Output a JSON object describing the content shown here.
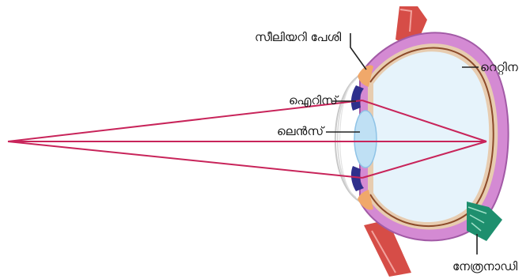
{
  "diagram": {
    "labels": {
      "ciliary_muscle": "സീലിയറി പേശി",
      "iris": "ഐറിസ്",
      "lens": "ലെൻസ്",
      "retina": "റെറ്റിന",
      "optic_nerve": "നേത്രനാഡി"
    },
    "colors": {
      "sclera": "#d48ad3",
      "sclera_edge": "#a25aa6",
      "choroid": "#e7ccb0",
      "retina_line": "#8c4a2a",
      "vitreous": "#e6f3fb",
      "lens": "#bfe0f4",
      "iris": "#2e2f8c",
      "light_rays": "#c8245a",
      "muscle": "#d23a33",
      "optic_nerve": "#1e8f6e",
      "label_line": "#222222"
    }
  }
}
